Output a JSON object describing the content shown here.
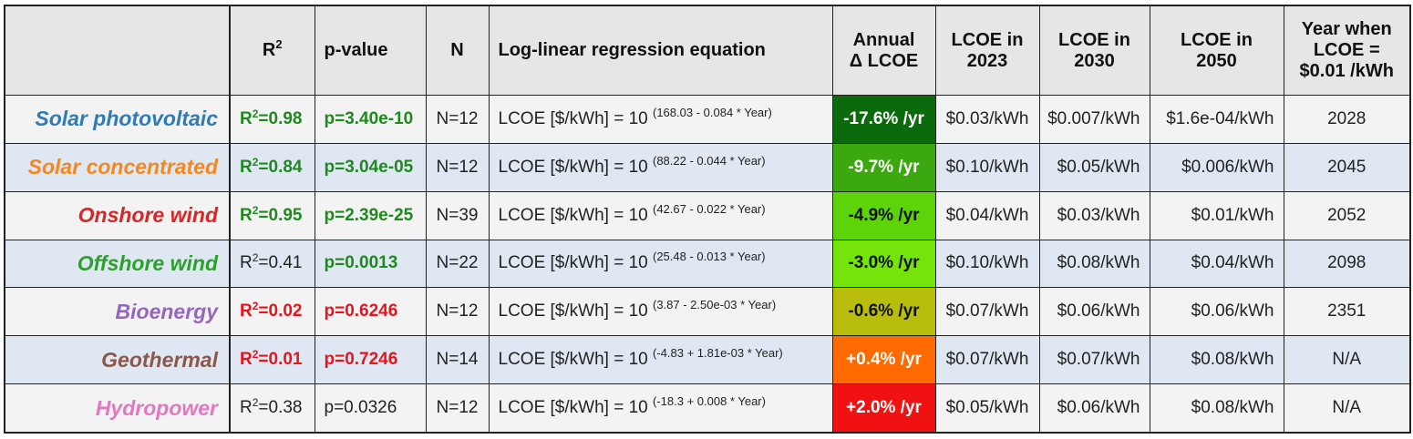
{
  "header": {
    "corner": "",
    "r2": "R",
    "r2_sup": "2",
    "pvalue": "p-value",
    "n": "N",
    "equation": "Log-linear regression equation",
    "annual_line1": "Annual",
    "annual_line2": "Δ LCOE",
    "lcoe2023_line1": "LCOE in",
    "lcoe2023_line2": "2023",
    "lcoe2030_line1": "LCOE in",
    "lcoe2030_line2": "2030",
    "lcoe2050_line1": "LCOE in",
    "lcoe2050_line2": "2050",
    "year_line1": "Year when",
    "year_line2": "LCOE =",
    "year_line3": "$0.01 /kWh"
  },
  "rows": [
    {
      "name": "Solar photovoltaic",
      "name_color": "#2e7bb6",
      "r2_prefix": "R",
      "r2_sup": "2",
      "r2_value": "=0.98",
      "r2_color": "#1e8a1e",
      "r2_bold": true,
      "p": "p=3.40e-10",
      "p_color": "#1e8a1e",
      "p_bold": true,
      "n": "N=12",
      "eq_base": "LCOE [$/kWh] = 10 ",
      "eq_exp": "(168.03 - 0.084 * Year)",
      "change": "-17.6% /yr",
      "change_bg": "#0b6a0b",
      "change_color": "#ffffff",
      "l2023": "$0.03/kWh",
      "l2030": "$0.007/kWh",
      "l2050": "$1.6e-04/kWh",
      "year": "2028"
    },
    {
      "name": "Solar concentrated",
      "name_color": "#f5871f",
      "r2_prefix": "R",
      "r2_sup": "2",
      "r2_value": "=0.84",
      "r2_color": "#1e8a1e",
      "r2_bold": true,
      "p": "p=3.04e-05",
      "p_color": "#1e8a1e",
      "p_bold": true,
      "n": "N=12",
      "eq_base": "LCOE [$/kWh] = 10 ",
      "eq_exp": "(88.22 - 0.044 * Year)",
      "change": "-9.7% /yr",
      "change_bg": "#3aa80e",
      "change_color": "#ffffff",
      "l2023": "$0.10/kWh",
      "l2030": "$0.05/kWh",
      "l2050": "$0.006/kWh",
      "year": "2045"
    },
    {
      "name": "Onshore wind",
      "name_color": "#d62728",
      "r2_prefix": "R",
      "r2_sup": "2",
      "r2_value": "=0.95",
      "r2_color": "#1e8a1e",
      "r2_bold": true,
      "p": "p=2.39e-25",
      "p_color": "#1e8a1e",
      "p_bold": true,
      "n": "N=39",
      "eq_base": "LCOE [$/kWh] = 10 ",
      "eq_exp": "(42.67 - 0.022 * Year)",
      "change": "-4.9% /yr",
      "change_bg": "#5dd40a",
      "change_color": "#111111",
      "l2023": "$0.04/kWh",
      "l2030": "$0.03/kWh",
      "l2050": "$0.01/kWh",
      "year": "2052"
    },
    {
      "name": "Offshore wind",
      "name_color": "#2ca02c",
      "r2_prefix": "R",
      "r2_sup": "2",
      "r2_value": "=0.41",
      "r2_color": "#222222",
      "r2_bold": false,
      "p": "p=0.0013",
      "p_color": "#1e8a1e",
      "p_bold": true,
      "n": "N=22",
      "eq_base": "LCOE [$/kWh] = 10 ",
      "eq_exp": "(25.48 - 0.013 * Year)",
      "change": "-3.0% /yr",
      "change_bg": "#74e40a",
      "change_color": "#111111",
      "l2023": "$0.10/kWh",
      "l2030": "$0.08/kWh",
      "l2050": "$0.04/kWh",
      "year": "2098"
    },
    {
      "name": "Bioenergy",
      "name_color": "#9467bd",
      "r2_prefix": "R",
      "r2_sup": "2",
      "r2_value": "=0.02",
      "r2_color": "#e8141b",
      "r2_bold": true,
      "p": "p=0.6246",
      "p_color": "#e8141b",
      "p_bold": true,
      "n": "N=12",
      "eq_base": "LCOE [$/kWh] = 10 ",
      "eq_exp": "(3.87 - 2.50e-03 * Year)",
      "change": "-0.6% /yr",
      "change_bg": "#b9bd0b",
      "change_color": "#111111",
      "l2023": "$0.07/kWh",
      "l2030": "$0.06/kWh",
      "l2050": "$0.06/kWh",
      "year": "2351"
    },
    {
      "name": "Geothermal",
      "name_color": "#8c564b",
      "r2_prefix": "R",
      "r2_sup": "2",
      "r2_value": "=0.01",
      "r2_color": "#e8141b",
      "r2_bold": true,
      "p": "p=0.7246",
      "p_color": "#e8141b",
      "p_bold": true,
      "n": "N=14",
      "eq_base": "LCOE [$/kWh] = 10 ",
      "eq_exp": "(-4.83 + 1.81e-03 * Year)",
      "change": "+0.4% /yr",
      "change_bg": "#ff6a00",
      "change_color": "#ffffff",
      "l2023": "$0.07/kWh",
      "l2030": "$0.07/kWh",
      "l2050": "$0.08/kWh",
      "year": "N/A"
    },
    {
      "name": "Hydropower",
      "name_color": "#e377c2",
      "r2_prefix": "R",
      "r2_sup": "2",
      "r2_value": "=0.38",
      "r2_color": "#222222",
      "r2_bold": false,
      "p": "p=0.0326",
      "p_color": "#222222",
      "p_bold": false,
      "n": "N=12",
      "eq_base": "LCOE [$/kWh] = 10 ",
      "eq_exp": "(-18.3 + 0.008 * Year)",
      "change": "+2.0% /yr",
      "change_bg": "#f01212",
      "change_color": "#ffffff",
      "l2023": "$0.05/kWh",
      "l2030": "$0.06/kWh",
      "l2050": "$0.08/kWh",
      "year": "N/A"
    }
  ]
}
